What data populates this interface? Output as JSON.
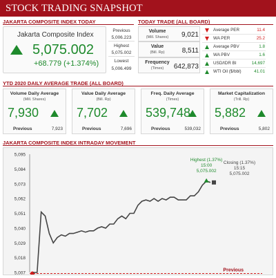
{
  "banner": {
    "title": "STOCK TRADING SNAPSHOT"
  },
  "sections": {
    "jci": "JAKARTA COMPOSITE INDEX TODAY",
    "today_trade": "TODAY TRADE (ALL BOARD)",
    "ytd": "YTD 2020 DAILY AVERAGE TRADE (ALL BOARD)",
    "intraday": "JAKARTA COMPOSITE INDEX INTRADAY MOVEMENT"
  },
  "jci": {
    "name": "Jakarta Composite Index",
    "value": "5,075.002",
    "change": "+68.779 (+1.374%)",
    "stats": [
      {
        "label": "Previous",
        "value": "5,006.223"
      },
      {
        "label": "Highest",
        "value": "5,075.002"
      },
      {
        "label": "Lowest",
        "value": "5,006.499"
      }
    ]
  },
  "today_trade": [
    {
      "label": "Volume",
      "sub": "(Mill. Shares)",
      "value": "9,021"
    },
    {
      "label": "Value",
      "sub": "(Bill. Rp)",
      "value": "8,511"
    },
    {
      "label": "Frequency",
      "sub": "(Times)",
      "value": "642,873"
    }
  ],
  "indicators": [
    {
      "name": "Average PER",
      "value": "11.4",
      "direction": "down",
      "color": "#d21c1c"
    },
    {
      "name": "WA PER",
      "value": "25.2",
      "direction": "down",
      "color": "#d21c1c"
    },
    {
      "name": "Average PBV",
      "value": "1.8",
      "direction": "up",
      "color": "#1e8a2c"
    },
    {
      "name": "WA PBV",
      "value": "1.6",
      "direction": "up",
      "color": "#1e8a2c"
    },
    {
      "name": "USD/IDR BI",
      "value": "14,697",
      "direction": "up",
      "color": "#1e8a2c"
    },
    {
      "name": "WTI Oil ($/bbl)",
      "value": "41.01",
      "direction": "up",
      "color": "#1e8a2c"
    }
  ],
  "ytd": [
    {
      "title": "Volume Daily Average",
      "sub": "(Mill. Shares)",
      "value": "7,930",
      "prev_label": "Previous",
      "prev_value": "7,923"
    },
    {
      "title": "Value Daily Average",
      "sub": "(Bill. Rp)",
      "value": "7,702",
      "prev_label": "Previous",
      "prev_value": "7,696"
    },
    {
      "title": "Freq. Daily Average",
      "sub": "(Times)",
      "value": "539,748",
      "prev_label": "Previous",
      "prev_value": "539,032"
    },
    {
      "title": "Market Capitalization",
      "sub": "(Trill. Rp)",
      "value": "5,882",
      "prev_label": "Previous",
      "prev_value": "5,802"
    }
  ],
  "chart_data": {
    "type": "line",
    "title": "JAKARTA COMPOSITE INDEX INTRADAY MOVEMENT",
    "ylim": [
      5007,
      5095
    ],
    "y_ticks": [
      "5,095",
      "5,084",
      "5,073",
      "5,062",
      "5,051",
      "5,040",
      "5,029",
      "5,018",
      "5,007"
    ],
    "y_tick_values": [
      5095,
      5084,
      5073,
      5062,
      5051,
      5040,
      5029,
      5018,
      5007
    ],
    "grid": false,
    "series": [
      {
        "values": [
          5007,
          5007,
          5052,
          5049,
          5036,
          5029,
          5033,
          5035,
          5034,
          5036,
          5036,
          5037,
          5038,
          5037,
          5038,
          5038,
          5040,
          5041,
          5040,
          5043,
          5043,
          5047,
          5049,
          5047,
          5051,
          5051,
          5057,
          5060,
          5061,
          5060,
          5062,
          5060,
          5062,
          5061,
          5063,
          5063,
          5061,
          5061,
          5061,
          5064,
          5064,
          5067,
          5072,
          5075,
          5074
        ]
      }
    ],
    "previous": {
      "label": "Previous",
      "value": 5006.223
    },
    "highest": {
      "label": "Highest (1.37%)",
      "time": "15:00",
      "value": "5,075.002"
    },
    "closing": {
      "label": "Closing (1.37%)",
      "time": "15:15",
      "value": "5,075.002"
    }
  },
  "colors": {
    "brand": "#a2121c",
    "up": "#1e8a2c",
    "down": "#d21c1c"
  },
  "icons": {
    "up": "up-arrow-icon",
    "down": "down-arrow-icon"
  }
}
